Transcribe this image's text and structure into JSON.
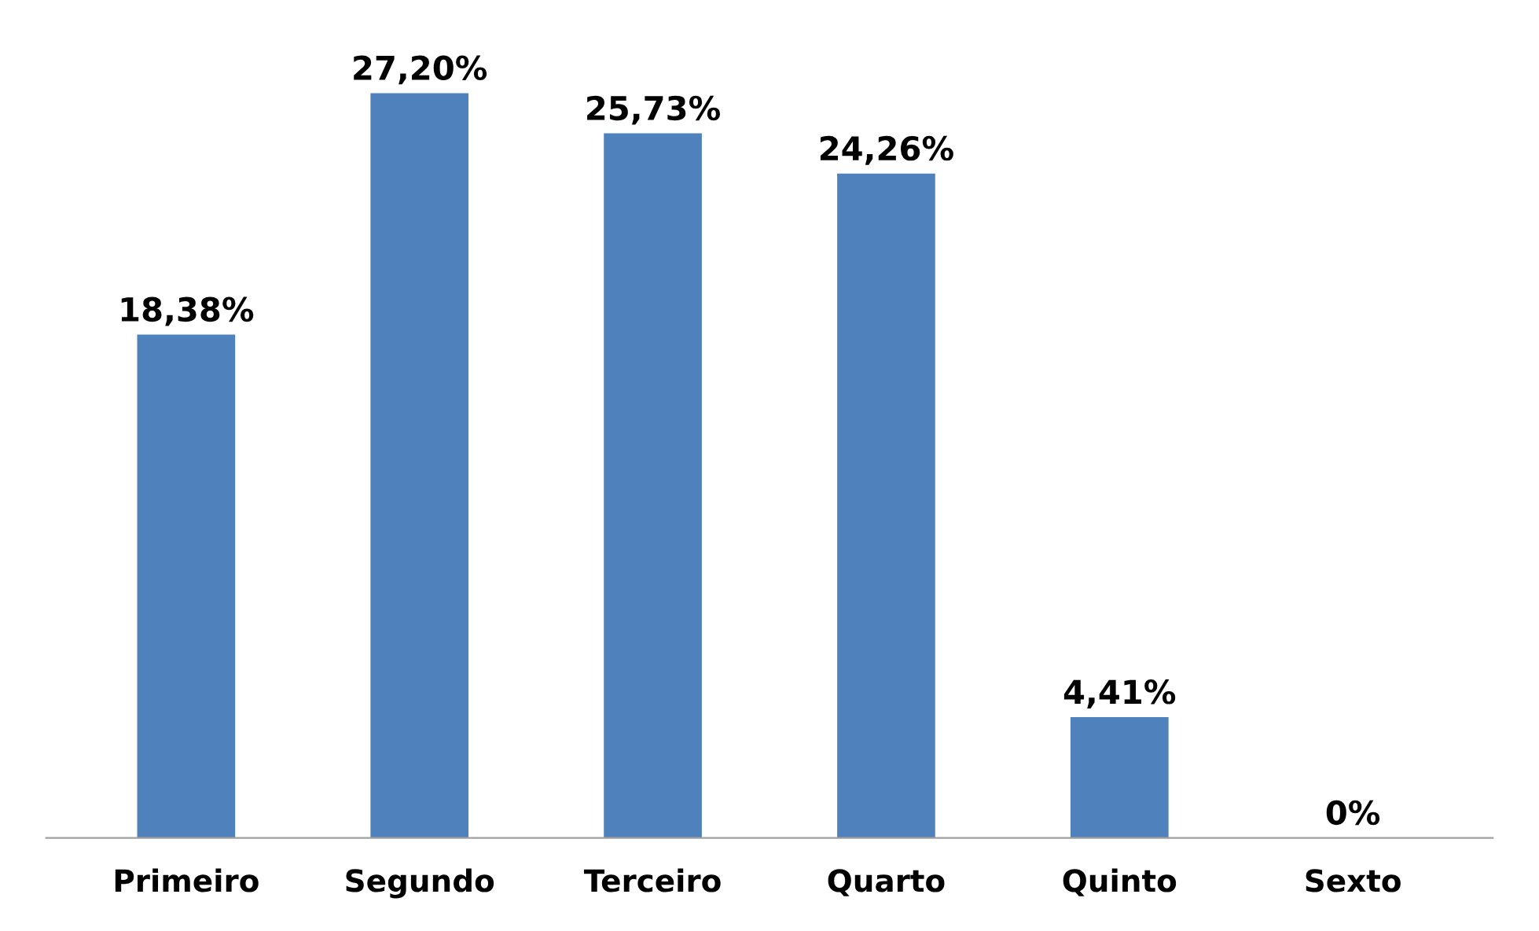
{
  "chart_data": {
    "type": "bar",
    "categories": [
      "Primeiro",
      "Segundo",
      "Terceiro",
      "Quarto",
      "Quinto",
      "Sexto"
    ],
    "values": [
      18.38,
      27.2,
      25.73,
      24.26,
      4.41,
      0
    ],
    "value_labels": [
      "18,38%",
      "27,20%",
      "25,73%",
      "24,26%",
      "4,41%",
      "0%"
    ],
    "color": "#4f81bd",
    "grid": false,
    "legend": false
  }
}
